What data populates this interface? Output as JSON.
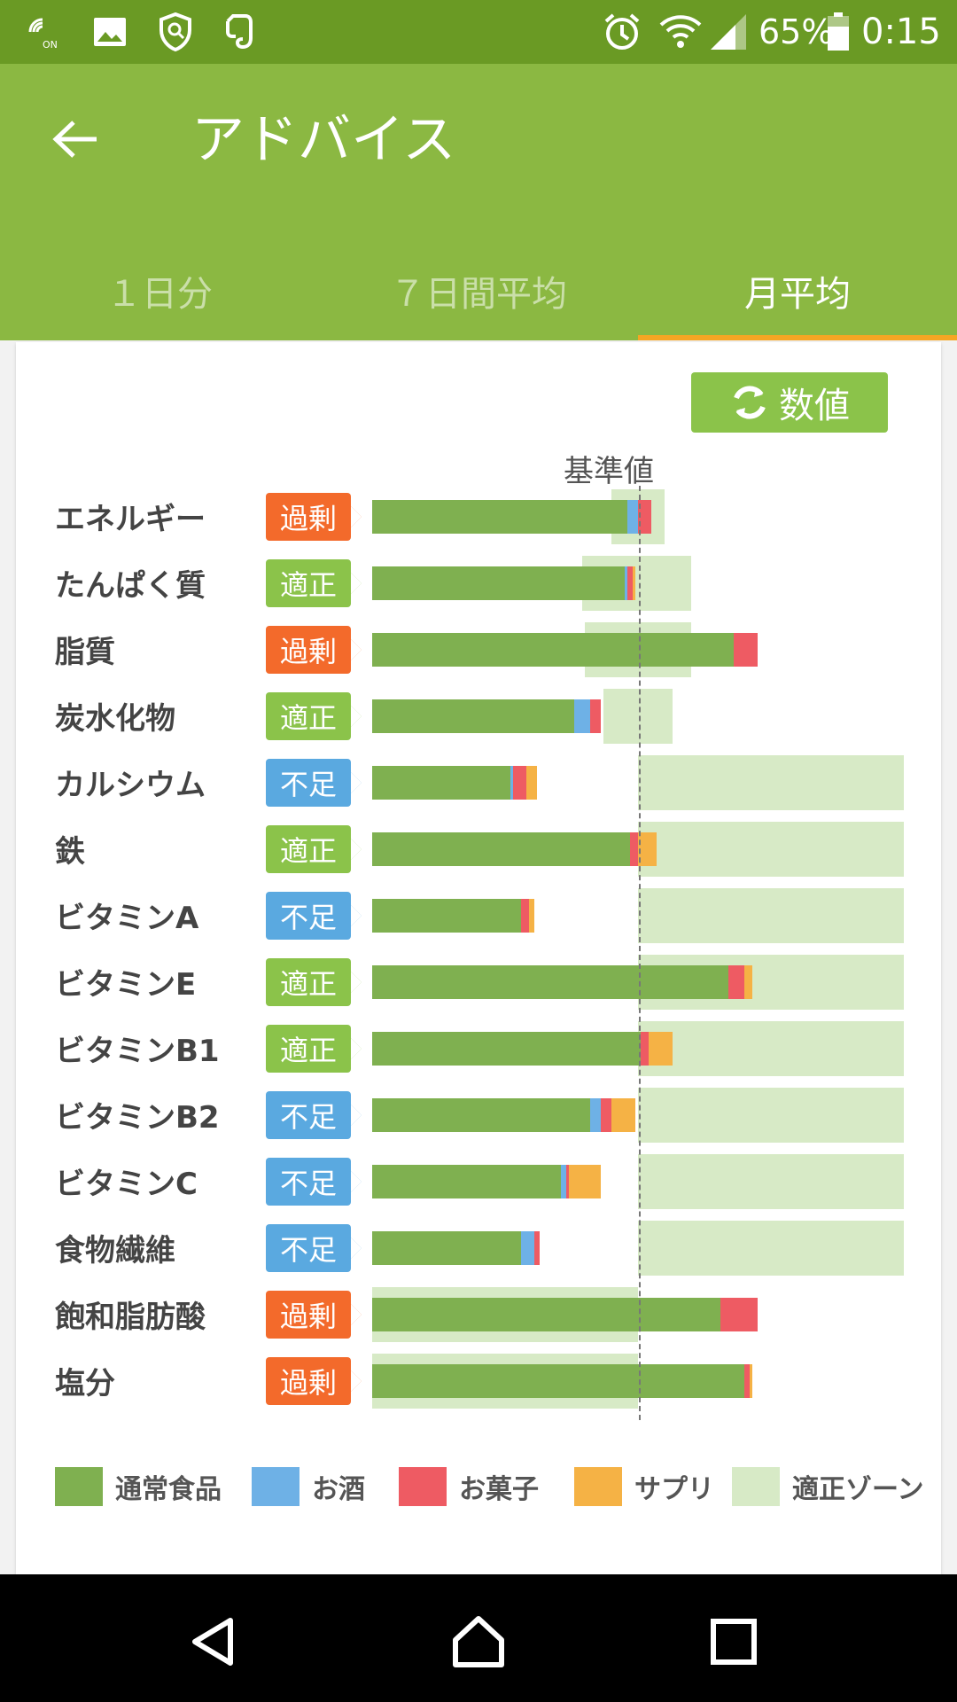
{
  "status_bar": {
    "battery_percent": "65%",
    "time": "0:15",
    "icons": [
      "nfc-on-icon",
      "image-icon",
      "shield-icon",
      "evernote-icon",
      "alarm-icon",
      "wifi-icon",
      "signal-icon",
      "battery-icon"
    ]
  },
  "app_bar": {
    "title": "アドバイス",
    "tabs": [
      "１日分",
      "７日間平均",
      "月平均"
    ],
    "active_tab": 2
  },
  "card": {
    "numeric_button_label": "数値",
    "reference_label": "基準値"
  },
  "colors": {
    "normal": "#7fb050",
    "alcohol": "#6eb1e6",
    "snack": "#ee5b63",
    "supplement": "#f5b245",
    "zone": "#d7eac6",
    "excess": "#f36a2b",
    "appropriate": "#8bc34a",
    "deficient": "#5aa9e0"
  },
  "chart_data": {
    "type": "bar",
    "stacked": true,
    "reference_value": 100,
    "unit": "% of reference (estimated)",
    "series_names": [
      "通常食品",
      "お酒",
      "お菓子",
      "サプリ"
    ],
    "rows": [
      {
        "name": "エネルギー",
        "status": "過剰",
        "status_key": "excess",
        "normal": 96,
        "alcohol": 4,
        "snack": 5,
        "supplement": 0,
        "zone": [
          90,
          110
        ]
      },
      {
        "name": "たんぱく質",
        "status": "適正",
        "status_key": "appropriate",
        "normal": 95,
        "alcohol": 1,
        "snack": 2,
        "supplement": 1,
        "zone": [
          79,
          120
        ]
      },
      {
        "name": "脂質",
        "status": "過剰",
        "status_key": "excess",
        "normal": 136,
        "alcohol": 0,
        "snack": 9,
        "supplement": 0,
        "zone": [
          80,
          120
        ]
      },
      {
        "name": "炭水化物",
        "status": "適正",
        "status_key": "appropriate",
        "normal": 76,
        "alcohol": 6,
        "snack": 4,
        "supplement": 0,
        "zone": [
          87,
          113
        ]
      },
      {
        "name": "カルシウム",
        "status": "不足",
        "status_key": "deficient",
        "normal": 52,
        "alcohol": 1,
        "snack": 5,
        "supplement": 4,
        "zone": [
          100,
          200
        ]
      },
      {
        "name": "鉄",
        "status": "適正",
        "status_key": "appropriate",
        "normal": 97,
        "alcohol": 0,
        "snack": 3,
        "supplement": 7,
        "zone": [
          100,
          200
        ]
      },
      {
        "name": "ビタミンA",
        "status": "不足",
        "status_key": "deficient",
        "normal": 56,
        "alcohol": 0,
        "snack": 3,
        "supplement": 2,
        "zone": [
          100,
          200
        ]
      },
      {
        "name": "ビタミンE",
        "status": "適正",
        "status_key": "appropriate",
        "normal": 134,
        "alcohol": 0,
        "snack": 6,
        "supplement": 3,
        "zone": [
          100,
          200
        ]
      },
      {
        "name": "ビタミンB1",
        "status": "適正",
        "status_key": "appropriate",
        "normal": 101,
        "alcohol": 0,
        "snack": 3,
        "supplement": 9,
        "zone": [
          100,
          200
        ]
      },
      {
        "name": "ビタミンB2",
        "status": "不足",
        "status_key": "deficient",
        "normal": 82,
        "alcohol": 4,
        "snack": 4,
        "supplement": 9,
        "zone": [
          100,
          200
        ]
      },
      {
        "name": "ビタミンC",
        "status": "不足",
        "status_key": "deficient",
        "normal": 71,
        "alcohol": 2,
        "snack": 1,
        "supplement": 12,
        "zone": [
          100,
          200
        ]
      },
      {
        "name": "食物繊維",
        "status": "不足",
        "status_key": "deficient",
        "normal": 56,
        "alcohol": 5,
        "snack": 2,
        "supplement": 0,
        "zone": [
          100,
          200
        ]
      },
      {
        "name": "飽和脂肪酸",
        "status": "過剰",
        "status_key": "excess",
        "normal": 131,
        "alcohol": 0,
        "snack": 14,
        "supplement": 0,
        "zone": [
          0,
          100
        ]
      },
      {
        "name": "塩分",
        "status": "過剰",
        "status_key": "excess",
        "normal": 140,
        "alcohol": 0,
        "snack": 2,
        "supplement": 1,
        "zone": [
          0,
          100
        ]
      }
    ]
  },
  "legend": [
    {
      "key": "normal",
      "label": "通常食品"
    },
    {
      "key": "alcohol",
      "label": "お酒"
    },
    {
      "key": "snack",
      "label": "お菓子"
    },
    {
      "key": "supplement",
      "label": "サプリ"
    },
    {
      "key": "zone",
      "label": "適正ゾーン"
    }
  ],
  "nav_bar": {
    "buttons": [
      "back-nav-icon",
      "home-nav-icon",
      "recents-nav-icon"
    ]
  }
}
